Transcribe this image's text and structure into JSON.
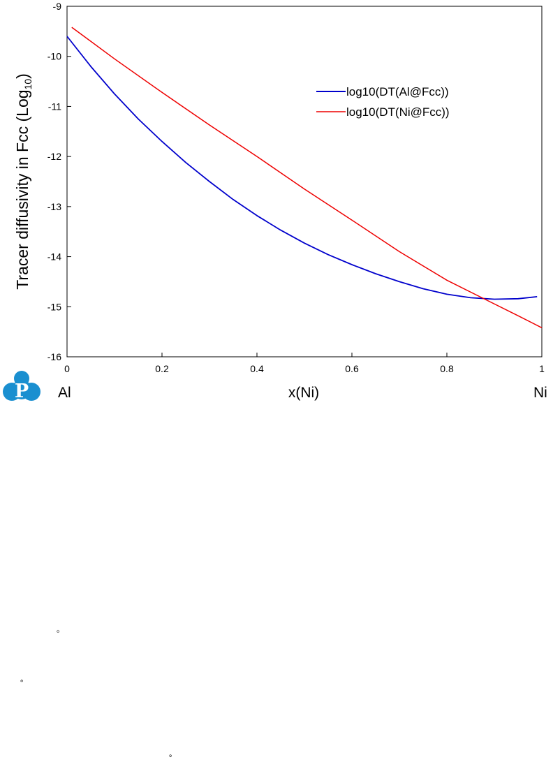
{
  "chart_data": {
    "type": "line",
    "xlabel": "x(Ni)",
    "ylabel": "Tracer diffusivity in Fcc (Log",
    "ylabel_sub": "10",
    "ylabel_end": ")",
    "xlim": [
      0,
      1
    ],
    "ylim": [
      -16,
      -9
    ],
    "x_ticks": [
      0,
      0.2,
      0.4,
      0.6,
      0.8,
      1
    ],
    "x_tick_labels": [
      "0",
      "0.2",
      "0.4",
      "0.6",
      "0.8",
      "1"
    ],
    "y_ticks": [
      -9,
      -10,
      -11,
      -12,
      -13,
      -14,
      -15,
      -16
    ],
    "y_tick_labels": [
      "-9",
      "-10",
      "-11",
      "-12",
      "-13",
      "-14",
      "-15",
      "-16"
    ],
    "x_end_labels": {
      "left": "Al",
      "right": "Ni"
    },
    "grid": false,
    "legend_position": "upper-right",
    "series": [
      {
        "name": "log10(DT(Al@Fcc))",
        "color": "#0000cc",
        "x": [
          0.0,
          0.05,
          0.1,
          0.15,
          0.2,
          0.25,
          0.3,
          0.35,
          0.4,
          0.45,
          0.5,
          0.55,
          0.6,
          0.65,
          0.7,
          0.75,
          0.8,
          0.85,
          0.9,
          0.95,
          0.99
        ],
        "y": [
          -9.6,
          -10.2,
          -10.75,
          -11.25,
          -11.7,
          -12.12,
          -12.5,
          -12.86,
          -13.18,
          -13.47,
          -13.73,
          -13.96,
          -14.16,
          -14.34,
          -14.5,
          -14.64,
          -14.75,
          -14.82,
          -14.85,
          -14.84,
          -14.8
        ]
      },
      {
        "name": "log10(DT(Ni@Fcc))",
        "color": "#ee0000",
        "x": [
          0.01,
          0.1,
          0.2,
          0.3,
          0.4,
          0.5,
          0.6,
          0.7,
          0.8,
          0.88,
          0.95,
          1.0
        ],
        "y": [
          -9.42,
          -10.05,
          -10.72,
          -11.37,
          -12.0,
          -12.65,
          -13.27,
          -13.9,
          -14.47,
          -14.85,
          -15.18,
          -15.42
        ]
      }
    ]
  },
  "logo": {
    "letter": "P",
    "color": "#1a8fd0"
  },
  "marks": [
    "。",
    "。",
    "。"
  ]
}
